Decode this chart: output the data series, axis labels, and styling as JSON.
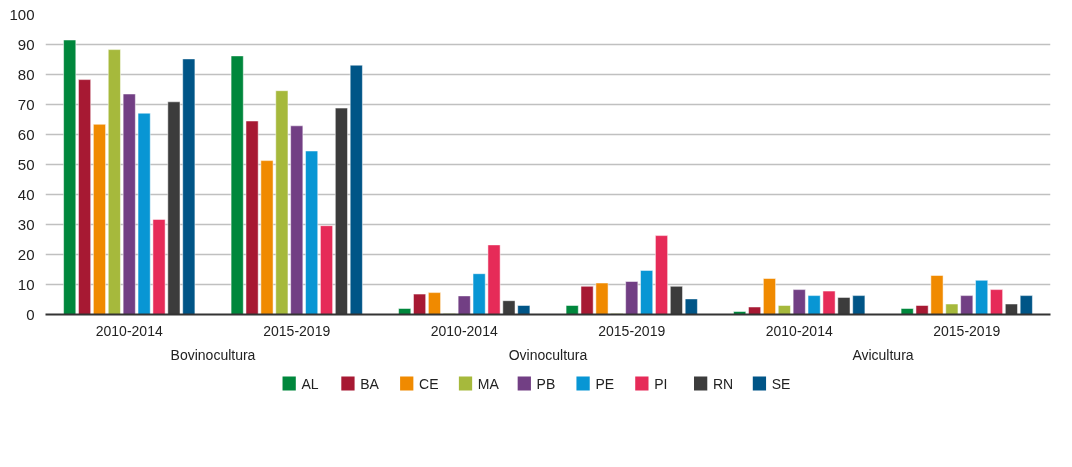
{
  "chart_data": {
    "type": "bar",
    "categories": [
      "2010-2014",
      "2015-2019",
      "2010-2014",
      "2015-2019",
      "2010-2014",
      "2015-2019"
    ],
    "annotations": [
      "Bovinocultura",
      "Ovinocultura",
      "Avicultura"
    ],
    "series": [
      {
        "name": "AL",
        "color": "#00873c",
        "values": [
          91.5,
          86.2,
          2.0,
          3.0,
          1.0,
          2.0
        ]
      },
      {
        "name": "BA",
        "color": "#a71933",
        "values": [
          78.3,
          64.5,
          6.8,
          9.4,
          2.5,
          3.0
        ]
      },
      {
        "name": "CE",
        "color": "#f08a00",
        "values": [
          63.4,
          51.3,
          7.3,
          10.5,
          12.0,
          13.0
        ]
      },
      {
        "name": "MA",
        "color": "#a6b93c",
        "values": [
          88.3,
          74.6,
          0.3,
          0.3,
          3.0,
          3.5
        ]
      },
      {
        "name": "PB",
        "color": "#723f84",
        "values": [
          73.5,
          62.9,
          6.2,
          11.0,
          8.3,
          6.3
        ]
      },
      {
        "name": "PE",
        "color": "#0896d4",
        "values": [
          67.1,
          54.5,
          13.6,
          14.7,
          6.3,
          11.4
        ]
      },
      {
        "name": "PI",
        "color": "#e62b58",
        "values": [
          31.7,
          29.6,
          23.2,
          26.3,
          7.8,
          8.3
        ]
      },
      {
        "name": "RN",
        "color": "#3c3c3c",
        "values": [
          70.9,
          68.8,
          4.6,
          9.4,
          5.7,
          3.5
        ]
      },
      {
        "name": "SE",
        "color": "#005587",
        "values": [
          85.2,
          83.1,
          3.0,
          5.2,
          6.3,
          6.3
        ]
      }
    ],
    "ylim": [
      0,
      100
    ],
    "yticks": [
      0,
      10,
      20,
      30,
      40,
      50,
      60,
      70,
      80,
      90,
      100
    ],
    "grid": "y",
    "legend": "bottom"
  }
}
